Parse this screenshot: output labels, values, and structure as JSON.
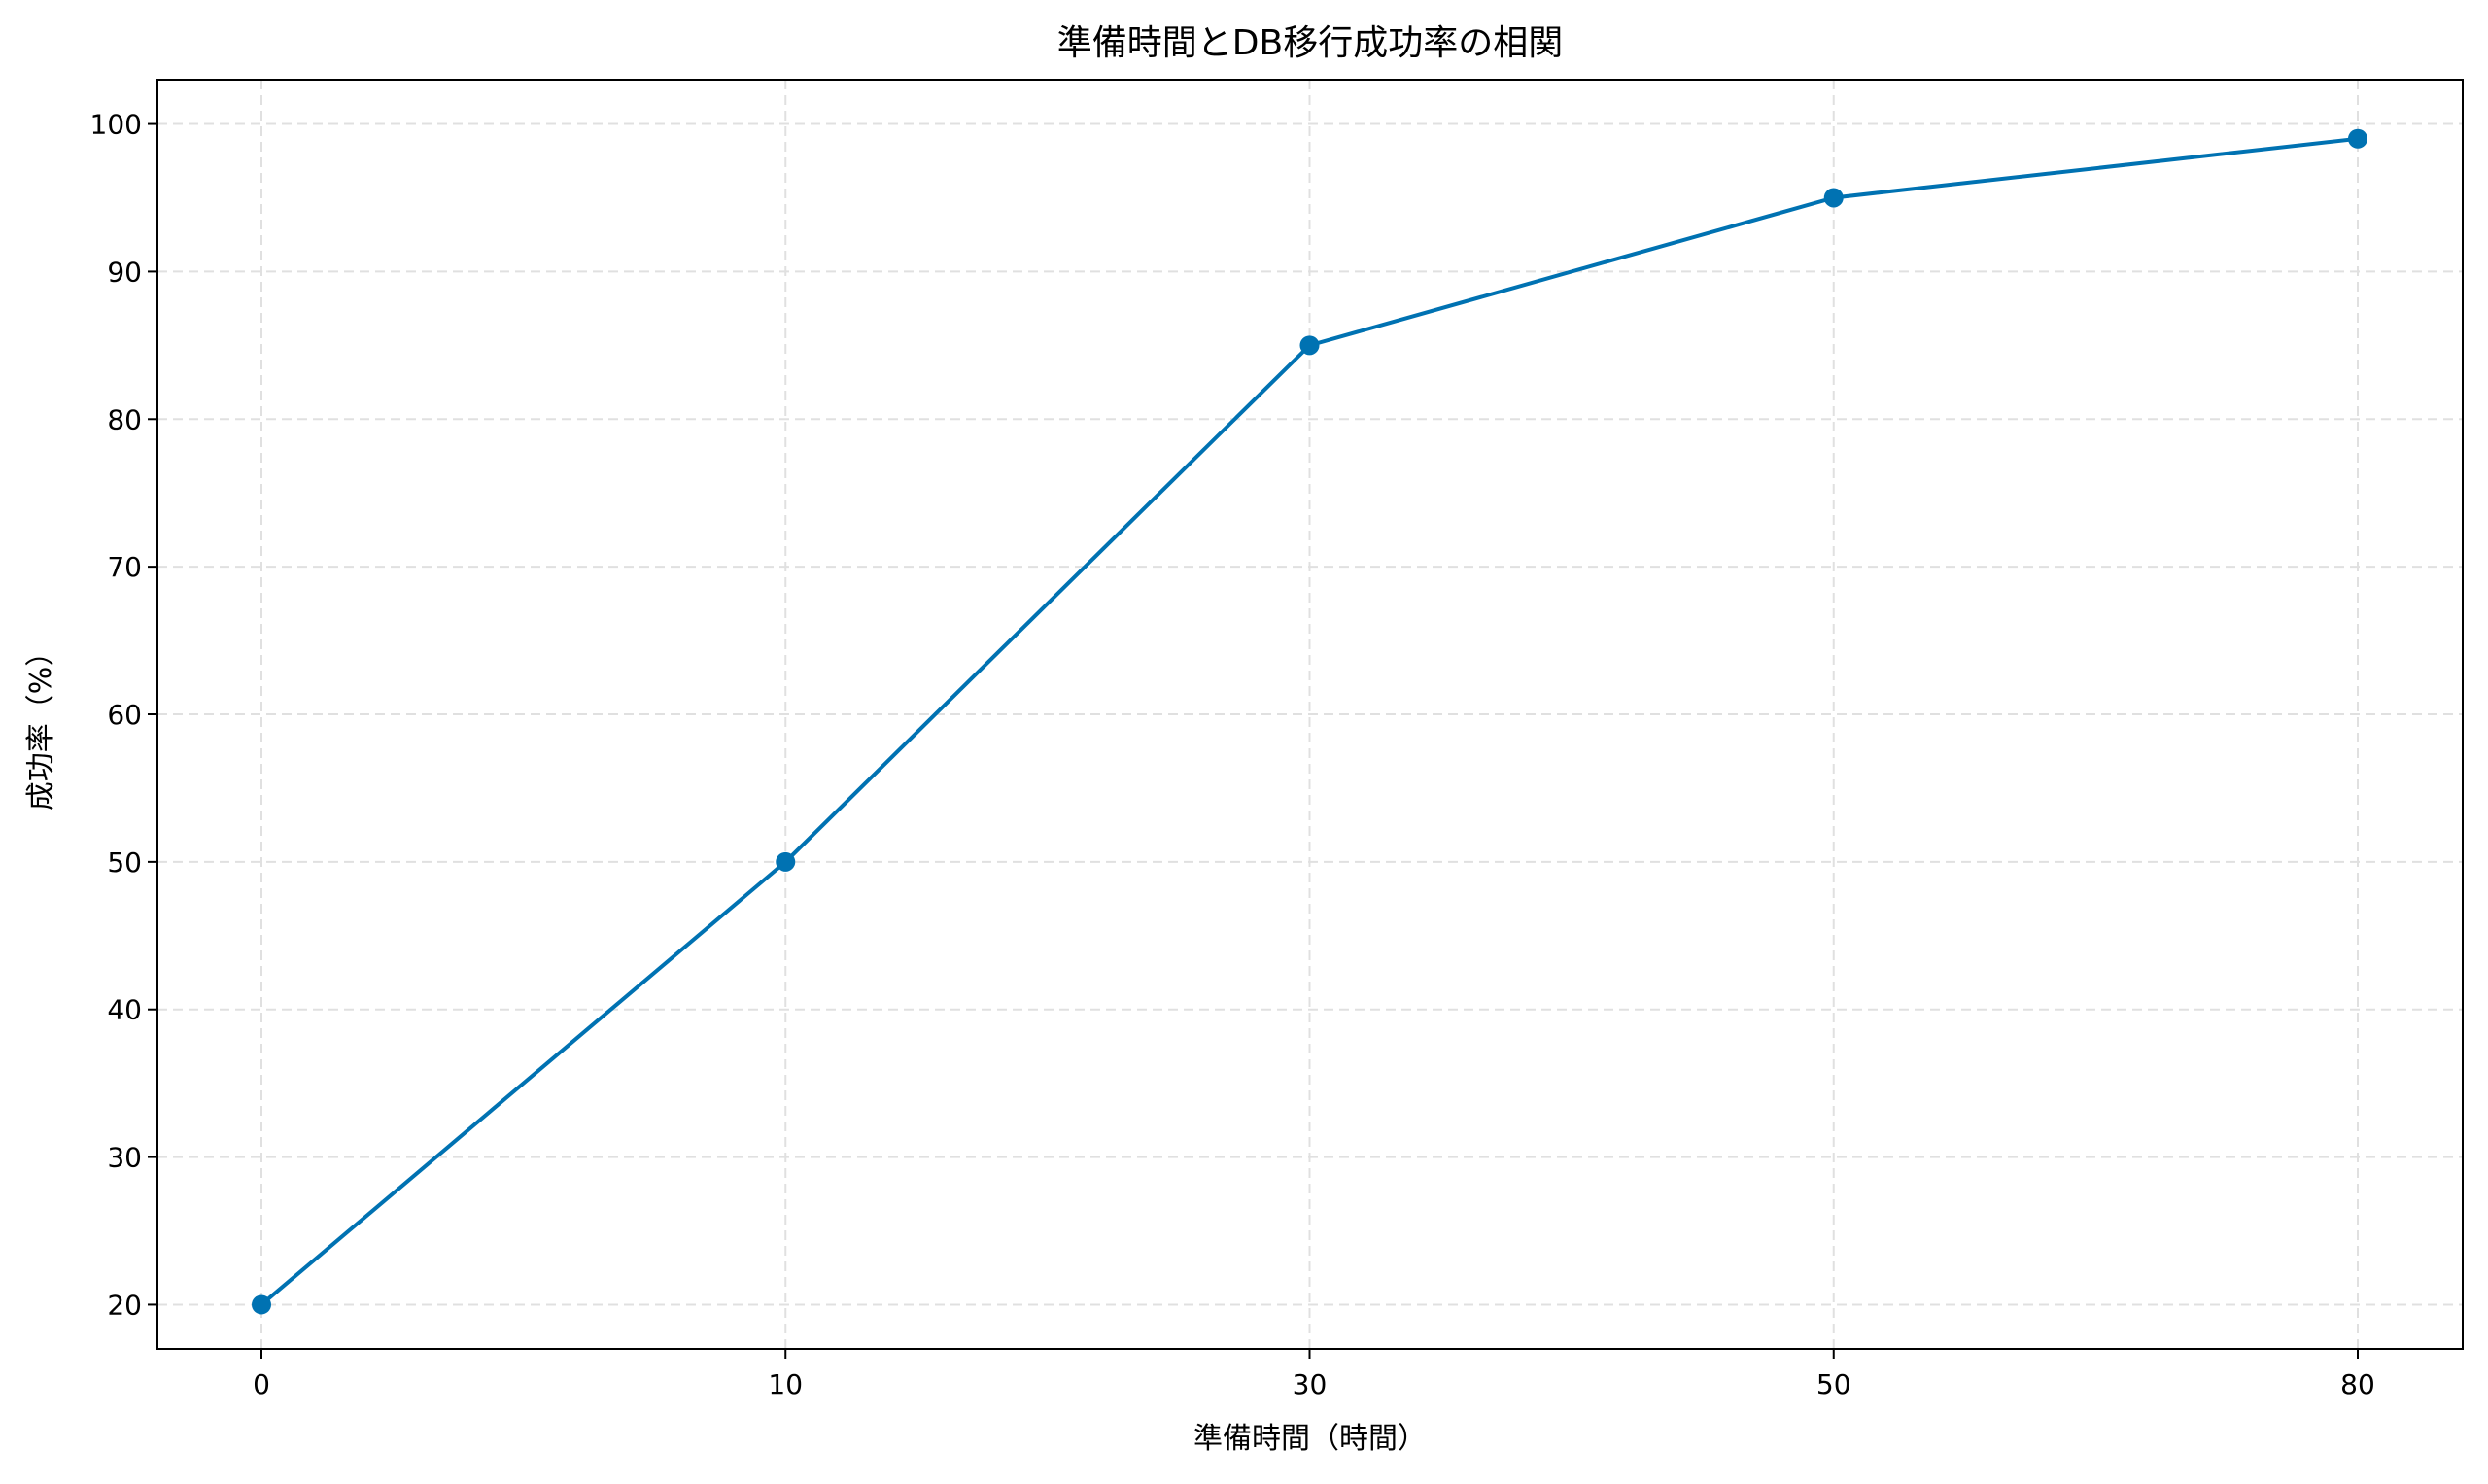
{
  "chart_data": {
    "type": "line",
    "title": "準備時間とDB移行成功率の相関",
    "xlabel": "準備時間（時間）",
    "ylabel": "成功率（%）",
    "categories": [
      "0",
      "10",
      "30",
      "50",
      "80"
    ],
    "series": [
      {
        "values": [
          20,
          50,
          85,
          95,
          99
        ],
        "color": "#0072b2",
        "marker": "circle"
      }
    ],
    "x_axis": "categorical (evenly spaced)",
    "yticks": [
      20,
      30,
      40,
      50,
      60,
      70,
      80,
      90,
      100
    ],
    "ylim": [
      17,
      103
    ],
    "grid": true,
    "grid_style": "dashed light gray"
  }
}
